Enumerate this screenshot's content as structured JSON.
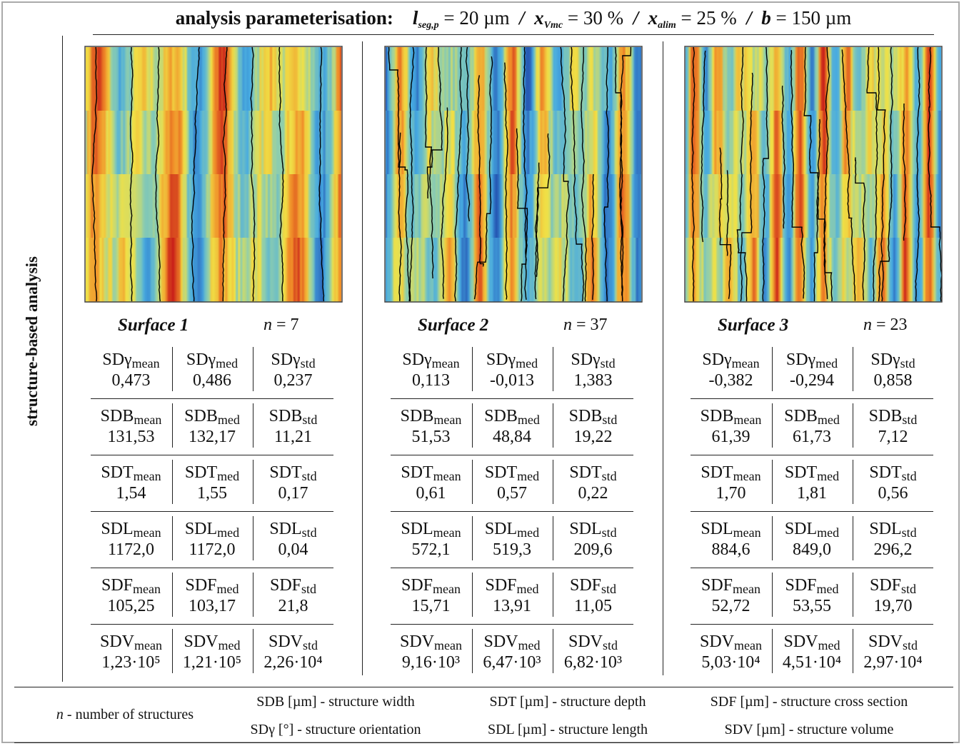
{
  "header": {
    "title": "analysis parameterisation:",
    "separator": "/",
    "params": [
      {
        "symbol": "l",
        "sub": "seg,p",
        "value": "= 20 µm"
      },
      {
        "symbol": "x",
        "sub": "Vmc",
        "value": "= 30 %"
      },
      {
        "symbol": "x",
        "sub": "alim",
        "value": "= 25 %"
      },
      {
        "symbol": "b",
        "sub": "",
        "value": "= 150 µm"
      }
    ]
  },
  "side_label": "structure-based analysis",
  "surfaces": [
    {
      "name": "Surface 1",
      "n_label": "n",
      "n_value": "= 7",
      "rows": [
        [
          {
            "base": "SDγ",
            "sub": "mean",
            "value": "0,473"
          },
          {
            "base": "SDγ",
            "sub": "med",
            "value": "0,486"
          },
          {
            "base": "SDγ",
            "sub": "std",
            "value": "0,237"
          }
        ],
        [
          {
            "base": "SDB",
            "sub": "mean",
            "value": "131,53"
          },
          {
            "base": "SDB",
            "sub": "med",
            "value": "132,17"
          },
          {
            "base": "SDB",
            "sub": "std",
            "value": "11,21"
          }
        ],
        [
          {
            "base": "SDT",
            "sub": "mean",
            "value": "1,54"
          },
          {
            "base": "SDT",
            "sub": "med",
            "value": "1,55"
          },
          {
            "base": "SDT",
            "sub": "std",
            "value": "0,17"
          }
        ],
        [
          {
            "base": "SDL",
            "sub": "mean",
            "value": "1172,0"
          },
          {
            "base": "SDL",
            "sub": "med",
            "value": "1172,0"
          },
          {
            "base": "SDL",
            "sub": "std",
            "value": "0,04"
          }
        ],
        [
          {
            "base": "SDF",
            "sub": "mean",
            "value": "105,25"
          },
          {
            "base": "SDF",
            "sub": "med",
            "value": "103,17"
          },
          {
            "base": "SDF",
            "sub": "std",
            "value": "21,8"
          }
        ],
        [
          {
            "base": "SDV",
            "sub": "mean",
            "value": "1,23·10⁵"
          },
          {
            "base": "SDV",
            "sub": "med",
            "value": "1,21·10⁵"
          },
          {
            "base": "SDV",
            "sub": "std",
            "value": "2,26·10⁴"
          }
        ]
      ]
    },
    {
      "name": "Surface 2",
      "n_label": "n",
      "n_value": "= 37",
      "rows": [
        [
          {
            "base": "SDγ",
            "sub": "mean",
            "value": "0,113"
          },
          {
            "base": "SDγ",
            "sub": "med",
            "value": "-0,013"
          },
          {
            "base": "SDγ",
            "sub": "std",
            "value": "1,383"
          }
        ],
        [
          {
            "base": "SDB",
            "sub": "mean",
            "value": "51,53"
          },
          {
            "base": "SDB",
            "sub": "med",
            "value": "48,84"
          },
          {
            "base": "SDB",
            "sub": "std",
            "value": "19,22"
          }
        ],
        [
          {
            "base": "SDT",
            "sub": "mean",
            "value": "0,61"
          },
          {
            "base": "SDT",
            "sub": "med",
            "value": "0,57"
          },
          {
            "base": "SDT",
            "sub": "std",
            "value": "0,22"
          }
        ],
        [
          {
            "base": "SDL",
            "sub": "mean",
            "value": "572,1"
          },
          {
            "base": "SDL",
            "sub": "med",
            "value": "519,3"
          },
          {
            "base": "SDL",
            "sub": "std",
            "value": "209,6"
          }
        ],
        [
          {
            "base": "SDF",
            "sub": "mean",
            "value": "15,71"
          },
          {
            "base": "SDF",
            "sub": "med",
            "value": "13,91"
          },
          {
            "base": "SDF",
            "sub": "std",
            "value": "11,05"
          }
        ],
        [
          {
            "base": "SDV",
            "sub": "mean",
            "value": "9,16·10³"
          },
          {
            "base": "SDV",
            "sub": "med",
            "value": "6,47·10³"
          },
          {
            "base": "SDV",
            "sub": "std",
            "value": "6,82·10³"
          }
        ]
      ]
    },
    {
      "name": "Surface 3",
      "n_label": "n",
      "n_value": "= 23",
      "rows": [
        [
          {
            "base": "SDγ",
            "sub": "mean",
            "value": "-0,382"
          },
          {
            "base": "SDγ",
            "sub": "med",
            "value": "-0,294"
          },
          {
            "base": "SDγ",
            "sub": "std",
            "value": "0,858"
          }
        ],
        [
          {
            "base": "SDB",
            "sub": "mean",
            "value": "61,39"
          },
          {
            "base": "SDB",
            "sub": "med",
            "value": "61,73"
          },
          {
            "base": "SDB",
            "sub": "std",
            "value": "7,12"
          }
        ],
        [
          {
            "base": "SDT",
            "sub": "mean",
            "value": "1,70"
          },
          {
            "base": "SDT",
            "sub": "med",
            "value": "1,81"
          },
          {
            "base": "SDT",
            "sub": "std",
            "value": "0,56"
          }
        ],
        [
          {
            "base": "SDL",
            "sub": "mean",
            "value": "884,6"
          },
          {
            "base": "SDL",
            "sub": "med",
            "value": "849,0"
          },
          {
            "base": "SDL",
            "sub": "std",
            "value": "296,2"
          }
        ],
        [
          {
            "base": "SDF",
            "sub": "mean",
            "value": "52,72"
          },
          {
            "base": "SDF",
            "sub": "med",
            "value": "53,55"
          },
          {
            "base": "SDF",
            "sub": "std",
            "value": "19,70"
          }
        ],
        [
          {
            "base": "SDV",
            "sub": "mean",
            "value": "5,03·10⁴"
          },
          {
            "base": "SDV",
            "sub": "med",
            "value": "4,51·10⁴"
          },
          {
            "base": "SDV",
            "sub": "std",
            "value": "2,97·10⁴"
          }
        ]
      ]
    }
  ],
  "legend": {
    "n_item": {
      "symbol": "n",
      "text": "- number of structures"
    },
    "items": [
      "SDB [µm] - structure width",
      "SDT [µm] - structure depth",
      "SDF [µm] - structure cross section",
      "SDγ [°] - structure orientation",
      "SDL [µm] - structure length",
      "SDV [µm] - structure volume"
    ]
  }
}
